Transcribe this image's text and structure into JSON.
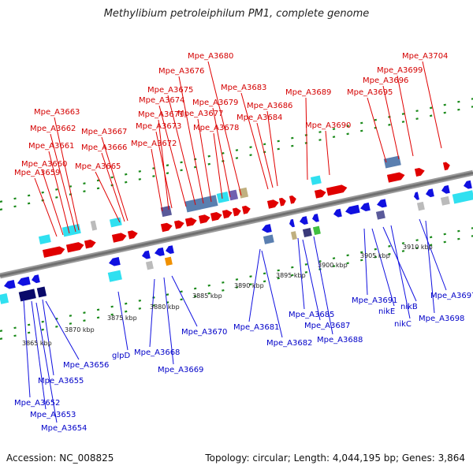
{
  "title": "Methylibium petroleiphilum PM1, complete genome",
  "footer": {
    "accession": "Accession: NC_008825",
    "info": "Topology: circular; Length: 4,044,195 bp; Genes: 3,864"
  },
  "colors": {
    "forward": "#e00000",
    "reverse": "#1010e0",
    "backbone": "#707070",
    "tick": "#1a8a1a",
    "rna_teal": "#30e0f0",
    "steel": "#5a7fb0"
  },
  "scale_labels": [
    "3865 kbp",
    "3870 kbp",
    "3875 kbp",
    "3880 kbp",
    "3885 kbp",
    "3890 kbp",
    "3895 kbp",
    "3900 kbp",
    "3905 kbp",
    "3910 kbp"
  ],
  "forward_labels": [
    "Mpe_A3659",
    "Mpe_A3660",
    "Mpe_A3661",
    "Mpe_A3662",
    "Mpe_A3663",
    "Mpe_A3665",
    "Mpe_A3666",
    "Mpe_A3667",
    "Mpe_A3671",
    "Mpe_A3672",
    "Mpe_A3673",
    "Mpe_A3674",
    "Mpe_A3675",
    "Mpe_A3676",
    "Mpe_A3677",
    "Mpe_A3678",
    "Mpe_A3679",
    "Mpe_A3680",
    "Mpe_A3683",
    "Mpe_A3684",
    "Mpe_A3686",
    "Mpe_A3689",
    "Mpe_A3690",
    "Mpe_A3695",
    "Mpe_A3696",
    "Mpe_A3699",
    "Mpe_A3704"
  ],
  "reverse_labels": [
    "Mpe_A3652",
    "Mpe_A3653",
    "Mpe_A3654",
    "Mpe_A3655",
    "Mpe_A3656",
    "glpD",
    "Mpe_A3668",
    "Mpe_A3669",
    "Mpe_A3670",
    "Mpe_A3681",
    "Mpe_A3682",
    "Mpe_A3685",
    "Mpe_A3687",
    "Mpe_A3688",
    "Mpe_A3691",
    "nikE",
    "nikB",
    "nikC",
    "Mpe_A3697",
    "Mpe_A3698"
  ]
}
